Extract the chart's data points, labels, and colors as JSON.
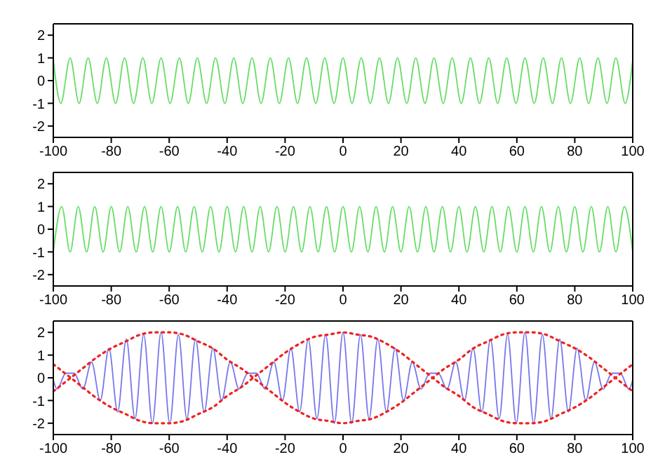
{
  "chart_data": [
    {
      "type": "line",
      "xlim": [
        -100,
        100
      ],
      "ylim": [
        -2.5,
        2.5
      ],
      "xticks": [
        -100,
        -80,
        -60,
        -40,
        -20,
        0,
        20,
        40,
        60,
        80,
        100
      ],
      "yticks": [
        -2,
        -1,
        0,
        1,
        2
      ],
      "legend": false,
      "marker": "none",
      "line_style": "solid",
      "series": [
        {
          "color": "#66dd66",
          "x": [
            -100,
            -97.4,
            -94.2,
            -91.1,
            -88.0,
            -84.8,
            -81.7,
            -78.5,
            -75.4,
            -72.3,
            -69.1,
            -66.0,
            -62.8,
            -59.7,
            -56.5,
            -53.4,
            -50.3,
            -47.1,
            -44.0,
            -40.8,
            -37.7,
            -34.6,
            -31.4,
            -28.3,
            -25.1,
            -22.0,
            -18.8,
            -15.7,
            -12.6,
            -9.4,
            -6.3,
            -3.1,
            0,
            3.1,
            6.3,
            9.4,
            12.6,
            15.7,
            18.8,
            22.0,
            25.1,
            28.3,
            31.4,
            34.6,
            37.7,
            40.8,
            44.0,
            47.1,
            50.3,
            53.4,
            56.5,
            59.7,
            62.8,
            66.0,
            69.1,
            72.3,
            75.4,
            78.5,
            81.7,
            84.8,
            88.0,
            91.1,
            94.2,
            97.4,
            100
          ],
          "values": [
            0.9,
            -1,
            1,
            -1,
            1,
            -1,
            1,
            -1,
            1,
            -1,
            1,
            -1,
            1,
            -1,
            1,
            -1,
            1,
            -1,
            1,
            -1,
            1,
            -1,
            1,
            -1,
            1,
            -1,
            1,
            -1,
            1,
            -1,
            1,
            -1,
            1,
            -1,
            1,
            -1,
            1,
            -1,
            1,
            -1,
            1,
            -1,
            1,
            -1,
            1,
            -1,
            1,
            -1,
            1,
            -1,
            1,
            -1,
            1,
            -1,
            1,
            -1,
            1,
            -1,
            1,
            -1,
            1,
            -1,
            1,
            -1,
            0.9
          ]
        }
      ]
    },
    {
      "type": "line",
      "xlim": [
        -100,
        100
      ],
      "ylim": [
        -2.5,
        2.5
      ],
      "xticks": [
        -100,
        -80,
        -60,
        -40,
        -20,
        0,
        20,
        40,
        60,
        80,
        100
      ],
      "yticks": [
        -2,
        -1,
        0,
        1,
        2
      ],
      "legend": false,
      "marker": "none",
      "line_style": "solid",
      "series": [
        {
          "color": "#66dd66",
          "x": [
            -100.0,
            -97.1,
            -94.2,
            -91.4,
            -88.5,
            -85.7,
            -82.8,
            -80.0,
            -77.1,
            -74.3,
            -71.4,
            -68.5,
            -65.7,
            -62.8,
            -60.0,
            -57.1,
            -54.3,
            -51.4,
            -48.6,
            -45.7,
            -42.8,
            -40.0,
            -37.1,
            -34.3,
            -31.4,
            -28.6,
            -25.7,
            -22.8,
            -20.0,
            -17.1,
            -14.3,
            -11.4,
            -8.6,
            -5.7,
            -2.9,
            0,
            2.9,
            5.7,
            8.6,
            11.4,
            14.3,
            17.1,
            20.0,
            22.8,
            25.7,
            28.6,
            31.4,
            34.3,
            37.1,
            40.0,
            42.8,
            45.7,
            48.6,
            51.4,
            54.3,
            57.1,
            60.0,
            62.8,
            65.7,
            68.5,
            71.4,
            74.3,
            77.1,
            80.0,
            82.8,
            85.7,
            88.5,
            91.4,
            94.2,
            97.1,
            100.0
          ],
          "values": [
            -1,
            1,
            -1,
            1,
            -1,
            1,
            -1,
            1,
            -1,
            1,
            -1,
            1,
            -1,
            1,
            -1,
            1,
            -1,
            1,
            -1,
            1,
            -1,
            1,
            -1,
            1,
            -1,
            1,
            -1,
            1,
            -1,
            1,
            -1,
            1,
            -1,
            1,
            -1,
            1,
            -1,
            1,
            -1,
            1,
            -1,
            1,
            -1,
            1,
            -1,
            1,
            -1,
            1,
            -1,
            1,
            -1,
            1,
            -1,
            1,
            -1,
            1,
            -1,
            1,
            -1,
            1,
            -1,
            1,
            -1,
            1,
            -1,
            1,
            -1,
            1,
            -1,
            1,
            -1
          ]
        }
      ]
    },
    {
      "type": "line",
      "xlim": [
        -100,
        100
      ],
      "ylim": [
        -2.5,
        2.5
      ],
      "xticks": [
        -100,
        -80,
        -60,
        -40,
        -20,
        0,
        20,
        40,
        60,
        80,
        100
      ],
      "yticks": [
        -2,
        -1,
        0,
        1,
        2
      ],
      "legend": false,
      "marker": "none",
      "series": [
        {
          "color": "#7777ee",
          "line_style": "solid",
          "x": [
            -100,
            -98.7,
            -95.7,
            -92.8,
            -89.8,
            -86.8,
            -83.8,
            -80.8,
            -77.8,
            -74.8,
            -71.8,
            -68.8,
            -65.8,
            -62.8,
            -59.8,
            -56.8,
            -53.9,
            -50.9,
            -47.9,
            -44.9,
            -41.9,
            -38.9,
            -35.9,
            -32.9,
            -29.9,
            -26.9,
            -23.9,
            -20.9,
            -18.0,
            -15.0,
            -12.0,
            -9.0,
            -6.0,
            -3.0,
            0,
            3.0,
            6.0,
            9.0,
            12.0,
            15.0,
            18.0,
            20.9,
            23.9,
            26.9,
            29.9,
            32.9,
            35.9,
            38.9,
            41.9,
            44.9,
            47.9,
            50.9,
            53.9,
            56.8,
            59.8,
            62.8,
            65.8,
            68.8,
            71.8,
            74.8,
            77.8,
            80.8,
            83.8,
            86.8,
            89.8,
            92.8,
            95.7,
            98.7,
            100
          ],
          "values": [
            -0.1,
            -0.5,
            0.2,
            0.2,
            -0.5,
            0.7,
            -1,
            1.3,
            -1.5,
            1.7,
            -1.8,
            1.9,
            -2,
            2,
            -2,
            1.9,
            -1.8,
            1.7,
            -1.5,
            1.3,
            -1,
            0.7,
            -0.5,
            0.2,
            0.2,
            -0.5,
            0.7,
            -1,
            1.3,
            -1.5,
            1.7,
            -1.8,
            1.9,
            -2,
            2,
            -2,
            1.9,
            -1.8,
            1.7,
            -1.5,
            1.3,
            -1,
            0.7,
            -0.5,
            0.2,
            0.2,
            -0.5,
            0.7,
            -1,
            1.3,
            -1.5,
            1.7,
            -1.8,
            1.9,
            -2,
            2,
            -2,
            1.9,
            -1.8,
            1.7,
            -1.5,
            1.3,
            -1,
            0.7,
            -0.5,
            0.2,
            0.2,
            -0.5,
            -0.1
          ]
        },
        {
          "color": "#ee2222",
          "line_style": "dotted",
          "x": [
            -100,
            -95,
            -90,
            -85,
            -80,
            -75,
            -70,
            -65,
            -60,
            -55,
            -50,
            -45,
            -40,
            -35,
            -30,
            -25,
            -20,
            -15,
            -10,
            -5,
            0,
            5,
            10,
            15,
            20,
            25,
            30,
            35,
            40,
            45,
            50,
            55,
            60,
            65,
            70,
            75,
            80,
            85,
            90,
            95,
            100
          ],
          "values": [
            0.6,
            0.1,
            -0.4,
            -0.9,
            -1.3,
            -1.6,
            -1.9,
            -2,
            -2,
            -1.9,
            -1.6,
            -1.3,
            -0.8,
            -0.4,
            0.1,
            0.6,
            1.1,
            1.5,
            1.8,
            1.9,
            2,
            1.9,
            1.8,
            1.5,
            1.1,
            0.6,
            0.1,
            -0.4,
            -0.8,
            -1.3,
            -1.6,
            -1.9,
            -2,
            -2,
            -1.9,
            -1.6,
            -1.3,
            -0.9,
            -0.4,
            0.1,
            0.6
          ]
        },
        {
          "color": "#ee2222",
          "line_style": "dotted",
          "x": [
            -100,
            -95,
            -90,
            -85,
            -80,
            -75,
            -70,
            -65,
            -60,
            -55,
            -50,
            -45,
            -40,
            -35,
            -30,
            -25,
            -20,
            -15,
            -10,
            -5,
            0,
            5,
            10,
            15,
            20,
            25,
            30,
            35,
            40,
            45,
            50,
            55,
            60,
            65,
            70,
            75,
            80,
            85,
            90,
            95,
            100
          ],
          "values": [
            -0.6,
            -0.1,
            0.4,
            0.9,
            1.3,
            1.6,
            1.9,
            2,
            2,
            1.9,
            1.6,
            1.3,
            0.8,
            0.4,
            -0.1,
            -0.6,
            -1.1,
            -1.5,
            -1.8,
            -1.9,
            -2,
            -1.9,
            -1.8,
            -1.5,
            -1.1,
            -0.6,
            -0.1,
            0.4,
            0.8,
            1.3,
            1.6,
            1.9,
            2,
            2,
            1.9,
            1.6,
            1.3,
            0.9,
            0.4,
            -0.1,
            -0.6
          ]
        }
      ]
    }
  ]
}
